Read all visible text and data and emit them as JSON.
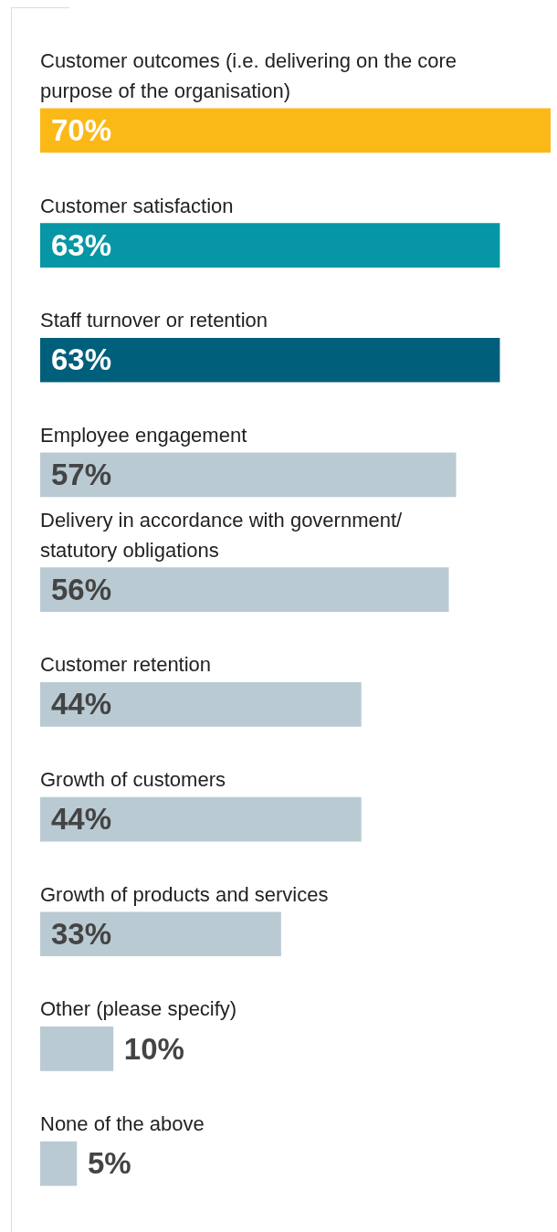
{
  "chart_data": {
    "type": "bar",
    "orientation": "horizontal",
    "categories": [
      "Customer outcomes (i.e. delivering on the core purpose of the organisation)",
      "Customer satisfaction",
      "Staff turnover or retention",
      "Employee engagement",
      "Delivery in accordance with government/ statutory obligations",
      "Customer retention",
      "Growth of customers",
      "Growth of products and services",
      "Other (please specify)",
      "None of the above"
    ],
    "values": [
      70,
      63,
      63,
      57,
      56,
      44,
      44,
      33,
      10,
      5
    ],
    "colors": [
      "#fbb917",
      "#0696a6",
      "#005f7a",
      "#b9cad3",
      "#b9cad3",
      "#b9cad3",
      "#b9cad3",
      "#b9cad3",
      "#b9cad3",
      "#b9cad3"
    ],
    "value_labels": [
      "70%",
      "63%",
      "63%",
      "57%",
      "56%",
      "44%",
      "44%",
      "33%",
      "10%",
      "5%"
    ]
  }
}
